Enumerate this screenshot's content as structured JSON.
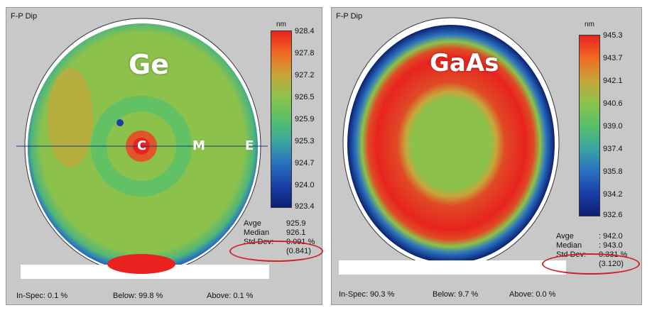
{
  "panels": [
    {
      "title": "F-P Dip",
      "material": "Ge",
      "unit": "nm",
      "scale_ticks": [
        "928.4",
        "927.8",
        "927.2",
        "926.5",
        "925.9",
        "925.3",
        "924.7",
        "924.0",
        "923.4"
      ],
      "points": [
        "C",
        "M",
        "E"
      ],
      "stats": [
        {
          "label": "Avge",
          "value": "925.9"
        },
        {
          "label": "Median",
          "value": "926.1"
        },
        {
          "label": "Std Dev:",
          "value": "0.091 %"
        },
        {
          "label": "",
          "value": "(0.841)"
        }
      ],
      "spec": {
        "in_spec_label": "In-Spec:",
        "in_spec_value": "0.1 %",
        "below_label": "Below:",
        "below_value": "99.8 %",
        "above_label": "Above:",
        "above_value": "0.1 %"
      }
    },
    {
      "title": "F-P Dip",
      "material": "GaAs",
      "unit": "nm",
      "scale_ticks": [
        "945.3",
        "943.7",
        "942.1",
        "940.6",
        "939.0",
        "937.4",
        "935.8",
        "934.2",
        "932.6"
      ],
      "stats": [
        {
          "label": "Avge",
          "value": ": 942.0"
        },
        {
          "label": "Median",
          "value": ": 943.0"
        },
        {
          "label": "Std Dev:",
          "value": "0.331 %"
        },
        {
          "label": "",
          "value": "(3.120)"
        }
      ],
      "spec": {
        "in_spec_label": "In-Spec:",
        "in_spec_value": "90.3 %",
        "below_label": "Below:",
        "below_value": "9.7 %",
        "above_label": "Above:",
        "above_value": "0.0 %"
      }
    }
  ],
  "colors": {
    "scale_gradient": [
      "#e8231f",
      "#f06a23",
      "#c8a63a",
      "#8cc24c",
      "#58c06a",
      "#3aa6a0",
      "#2a72c0",
      "#1a3fa8",
      "#0c1f70"
    ],
    "highlight": "#d0202a"
  }
}
